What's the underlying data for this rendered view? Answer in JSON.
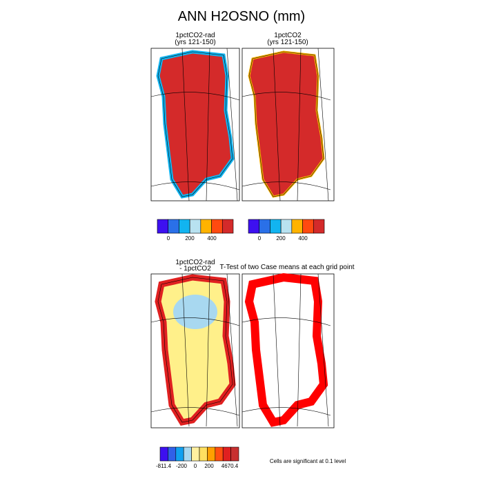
{
  "title": "ANN H2OSNO (mm)",
  "panels": [
    {
      "title": "1pctCO2-rad",
      "subtitle": "(yrs 121-150)"
    },
    {
      "title": "1pctCO2",
      "subtitle": "(yrs 121-150)"
    },
    {
      "title": "1pctCO2-rad",
      "subtitle": "- 1pctCO2"
    },
    {
      "title": "T-Test of two Case means at each grid point"
    }
  ],
  "colorbars": [
    {
      "colors": [
        "#3d10f0",
        "#2a70e8",
        "#12b4f0",
        "#b8e2f0",
        "#ffb300",
        "#ff4a10",
        "#d42a2a"
      ],
      "labels": [
        "0",
        "200",
        "400"
      ]
    },
    {
      "colors": [
        "#3d10f0",
        "#2a70e8",
        "#12b4f0",
        "#b8e2f0",
        "#ffb300",
        "#ff4a10",
        "#d42a2a"
      ],
      "labels": [
        "0",
        "200",
        "400"
      ]
    },
    {
      "colors": [
        "#3d10f0",
        "#3060e8",
        "#10a0f0",
        "#a8d8f0",
        "#fff0a0",
        "#ffe060",
        "#ffa000",
        "#ff5010",
        "#e02020",
        "#c83030"
      ],
      "labels": [
        "-811.4",
        "-200",
        "0",
        "200",
        "4670.4"
      ]
    }
  ],
  "note": "Cells are significant at 0.1 level"
}
